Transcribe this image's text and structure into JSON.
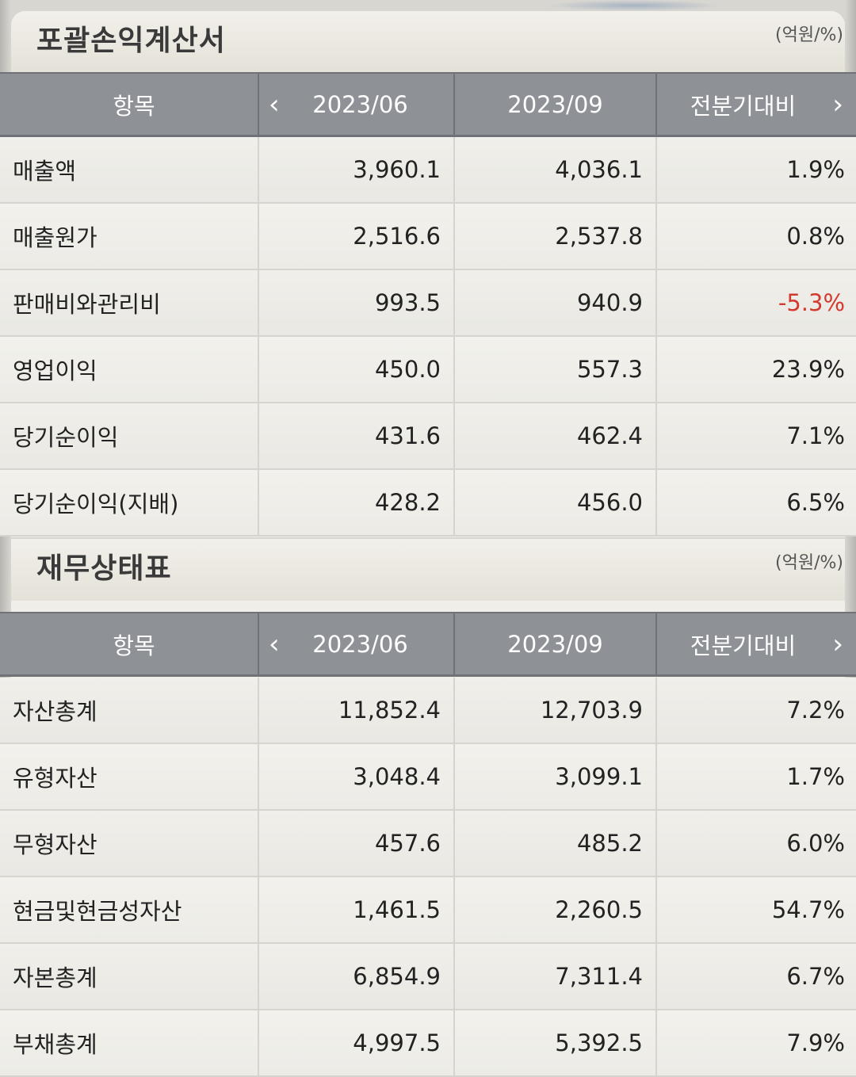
{
  "colors": {
    "header_bg": "#8e9196",
    "negative": "#d23a2e",
    "row_bg": "#efeee9",
    "title_text": "#3a3a3a"
  },
  "icons": {
    "prev": "chevron-left-icon",
    "next": "chevron-right-icon"
  },
  "sections": [
    {
      "title": "포괄손익계산서",
      "unit": "(억원/%)",
      "columns": {
        "item": "항목",
        "prev_arrow": "‹",
        "p1": "2023/06",
        "p2": "2023/09",
        "change": "전분기대비",
        "next_arrow": "›"
      },
      "rows": [
        {
          "label": "매출액",
          "p1": "3,960.1",
          "p2": "4,036.1",
          "change": "1.9%"
        },
        {
          "label": "매출원가",
          "p1": "2,516.6",
          "p2": "2,537.8",
          "change": "0.8%"
        },
        {
          "label": "판매비와관리비",
          "p1": "993.5",
          "p2": "940.9",
          "change": "-5.3%"
        },
        {
          "label": "영업이익",
          "p1": "450.0",
          "p2": "557.3",
          "change": "23.9%"
        },
        {
          "label": "당기순이익",
          "p1": "431.6",
          "p2": "462.4",
          "change": "7.1%"
        },
        {
          "label": "당기순이익(지배)",
          "p1": "428.2",
          "p2": "456.0",
          "change": "6.5%"
        }
      ]
    },
    {
      "title": "재무상태표",
      "unit": "(억원/%)",
      "columns": {
        "item": "항목",
        "prev_arrow": "‹",
        "p1": "2023/06",
        "p2": "2023/09",
        "change": "전분기대비",
        "next_arrow": "›"
      },
      "rows": [
        {
          "label": "자산총계",
          "p1": "11,852.4",
          "p2": "12,703.9",
          "change": "7.2%"
        },
        {
          "label": "유형자산",
          "p1": "3,048.4",
          "p2": "3,099.1",
          "change": "1.7%"
        },
        {
          "label": "무형자산",
          "p1": "457.6",
          "p2": "485.2",
          "change": "6.0%"
        },
        {
          "label": "현금및현금성자산",
          "p1": "1,461.5",
          "p2": "2,260.5",
          "change": "54.7%"
        },
        {
          "label": "자본총계",
          "p1": "6,854.9",
          "p2": "7,311.4",
          "change": "6.7%"
        },
        {
          "label": "부채총계",
          "p1": "4,997.5",
          "p2": "5,392.5",
          "change": "7.9%"
        }
      ]
    }
  ]
}
